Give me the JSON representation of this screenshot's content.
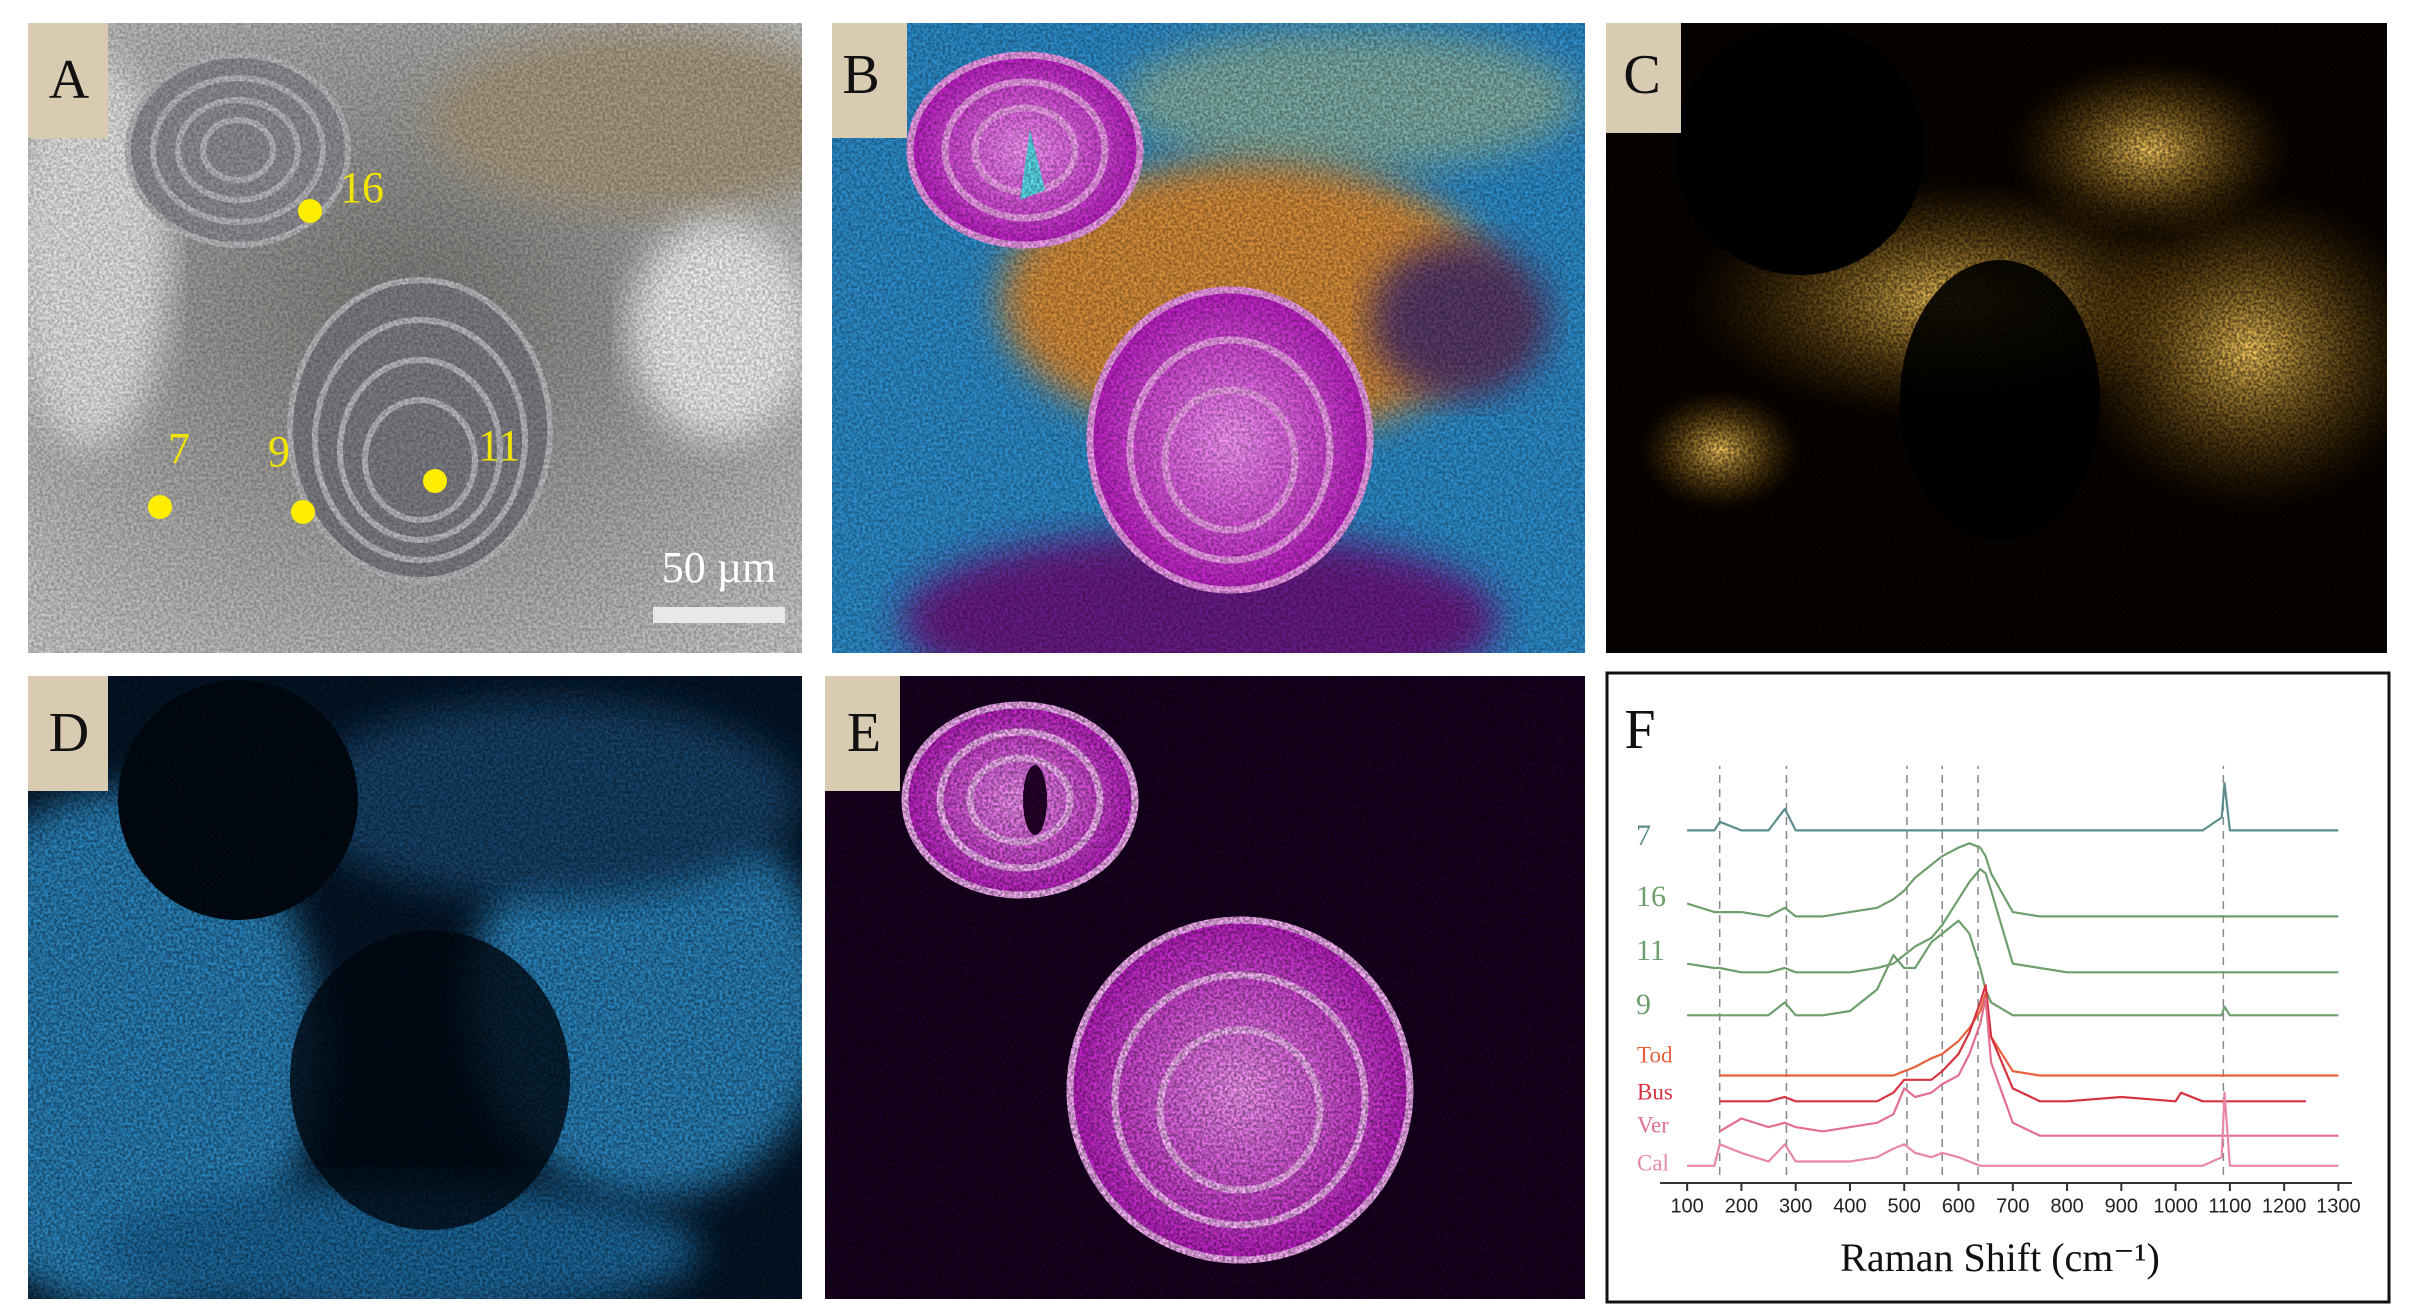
{
  "panels": [
    {
      "label": "A",
      "markers": [
        "16",
        "7",
        "9",
        "11"
      ],
      "scale_bar": "50 µm"
    },
    {
      "label": "B"
    },
    {
      "label": "C"
    },
    {
      "label": "D"
    },
    {
      "label": "E"
    }
  ],
  "chart_data": {
    "type": "line",
    "title": "F",
    "xlabel": "Raman Shift (cm⁻¹)",
    "x": [
      100,
      150,
      160,
      200,
      250,
      280,
      300,
      350,
      400,
      450,
      480,
      500,
      520,
      550,
      570,
      600,
      620,
      640,
      650,
      660,
      700,
      750,
      800,
      900,
      1000,
      1010,
      1050,
      1085,
      1090,
      1100,
      1200,
      1240,
      1300
    ],
    "xlim": [
      50,
      1325
    ],
    "xticks": [
      100,
      200,
      300,
      400,
      500,
      600,
      700,
      800,
      900,
      1000,
      1100,
      1200,
      1300
    ],
    "ylim": [
      0,
      100
    ],
    "reference_lines": [
      160,
      283,
      505,
      570,
      636,
      1088
    ],
    "series": [
      {
        "name": "7",
        "color": "#5d8c8c",
        "values": [
          82,
          82,
          84,
          82,
          82,
          87,
          82,
          82,
          82,
          82,
          82,
          82,
          82,
          82,
          82,
          82,
          82,
          82,
          82,
          82,
          82,
          82,
          82,
          82,
          82,
          82,
          82,
          85,
          93,
          82,
          82,
          82,
          82
        ]
      },
      {
        "name": "16",
        "color": "#6e9e6e",
        "values": [
          65,
          63,
          63,
          63,
          62,
          64,
          62,
          62,
          63,
          64,
          66,
          68,
          71,
          74,
          76,
          78,
          79,
          78,
          76,
          72,
          63,
          62,
          62,
          62,
          62,
          62,
          62,
          62,
          62,
          62,
          62,
          62,
          62
        ]
      },
      {
        "name": "11",
        "color": "#6e9e6e",
        "values": [
          51,
          50,
          50,
          49,
          49,
          50,
          49,
          49,
          49,
          50,
          51,
          53,
          55,
          57,
          60,
          66,
          70,
          73,
          72,
          68,
          51,
          50,
          49,
          49,
          49,
          49,
          49,
          49,
          49,
          49,
          49,
          49,
          49
        ]
      },
      {
        "name": "9",
        "color": "#6e9e6e",
        "values": [
          39,
          39,
          39,
          39,
          39,
          42,
          39,
          39,
          40,
          45,
          53,
          50,
          50,
          56,
          58,
          61,
          58,
          50,
          45,
          42,
          39,
          39,
          39,
          39,
          39,
          39,
          39,
          39,
          41,
          39,
          39,
          39,
          39
        ]
      },
      {
        "name": "Tod",
        "color": "#e8603c",
        "values": [
          null,
          null,
          25,
          25,
          25,
          25,
          25,
          25,
          25,
          25,
          25,
          26,
          27,
          29,
          30,
          33,
          36,
          40,
          44,
          34,
          26,
          25,
          25,
          25,
          25,
          25,
          25,
          25,
          25,
          25,
          25,
          25,
          25
        ]
      },
      {
        "name": "Bus",
        "color": "#d63341",
        "values": [
          null,
          null,
          19,
          19,
          19,
          20,
          19,
          19,
          19,
          19,
          21,
          24,
          24,
          24,
          26,
          30,
          35,
          42,
          46,
          34,
          22,
          19,
          19,
          20,
          19,
          21,
          19,
          19,
          19,
          19,
          19,
          19,
          null
        ]
      },
      {
        "name": "Ver",
        "color": "#e0708e",
        "values": [
          null,
          null,
          12,
          15,
          13,
          14,
          13,
          12,
          13,
          14,
          16,
          22,
          20,
          21,
          23,
          25,
          30,
          37,
          43,
          28,
          14,
          11,
          11,
          11,
          11,
          11,
          11,
          11,
          11,
          11,
          11,
          11,
          11
        ]
      },
      {
        "name": "Cal",
        "color": "#e887aa",
        "values": [
          4,
          4,
          9,
          7,
          5,
          9,
          5,
          5,
          5,
          6,
          8,
          9,
          7,
          6,
          7,
          6,
          5,
          4,
          4,
          4,
          4,
          4,
          4,
          4,
          4,
          4,
          4,
          6,
          21,
          4,
          4,
          4,
          4
        ]
      }
    ]
  }
}
